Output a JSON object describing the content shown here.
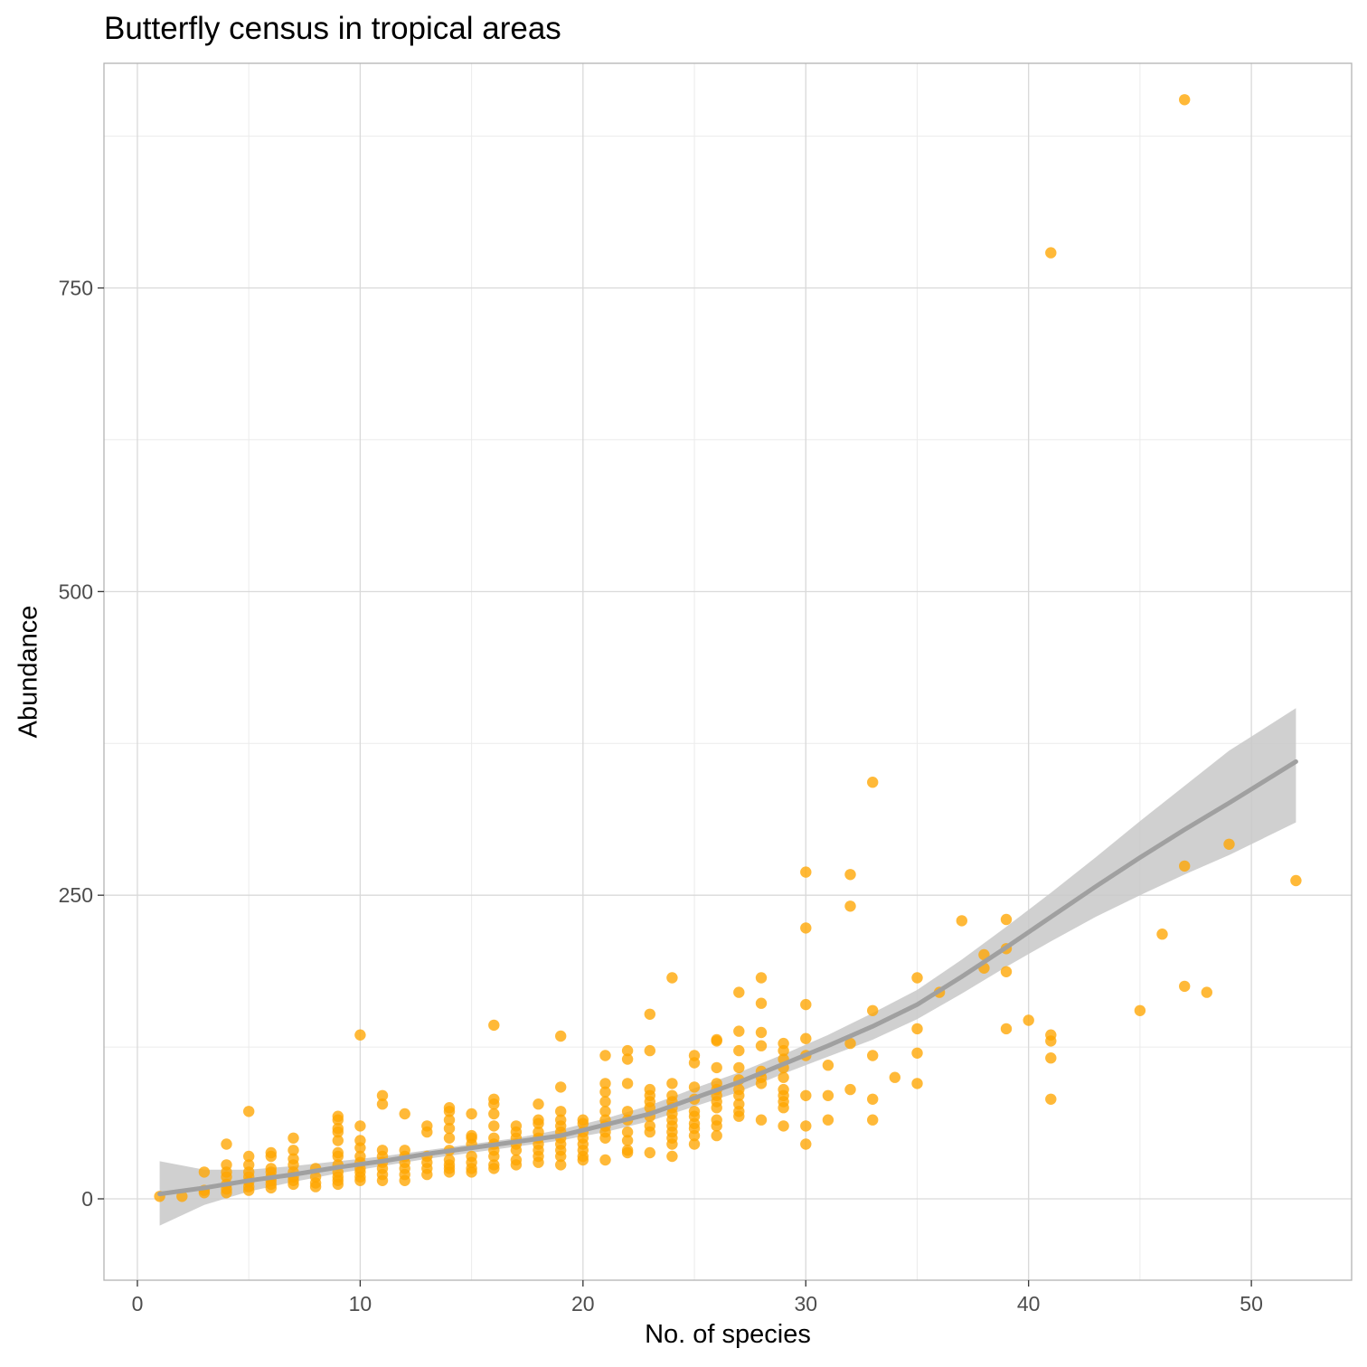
{
  "chart_data": {
    "type": "scatter",
    "title": "Butterfly census in tropical areas",
    "xlabel": "No. of species",
    "ylabel": "Abundance",
    "xlim": [
      -1.5,
      54.5
    ],
    "ylim": [
      -67,
      935
    ],
    "x_ticks": [
      0,
      10,
      20,
      30,
      40,
      50
    ],
    "y_ticks": [
      0,
      250,
      500,
      750
    ],
    "x_tick_labels": [
      "0",
      "10",
      "20",
      "30",
      "40",
      "50"
    ],
    "y_tick_labels": [
      "0",
      "250",
      "500",
      "750"
    ],
    "grid": true,
    "point_color": "#FFA500",
    "trend_color": "#A0A0A0",
    "band_color": "#C8C8C8",
    "points": [
      [
        1,
        2
      ],
      [
        2,
        2
      ],
      [
        3,
        5
      ],
      [
        3,
        7
      ],
      [
        3,
        22
      ],
      [
        4,
        5
      ],
      [
        4,
        8
      ],
      [
        4,
        12
      ],
      [
        4,
        18
      ],
      [
        4,
        22
      ],
      [
        4,
        28
      ],
      [
        4,
        45
      ],
      [
        5,
        7
      ],
      [
        5,
        10
      ],
      [
        5,
        14
      ],
      [
        5,
        18
      ],
      [
        5,
        22
      ],
      [
        5,
        28
      ],
      [
        5,
        35
      ],
      [
        5,
        72
      ],
      [
        6,
        9
      ],
      [
        6,
        12
      ],
      [
        6,
        15
      ],
      [
        6,
        18
      ],
      [
        6,
        22
      ],
      [
        6,
        25
      ],
      [
        6,
        35
      ],
      [
        6,
        38
      ],
      [
        7,
        12
      ],
      [
        7,
        15
      ],
      [
        7,
        18
      ],
      [
        7,
        22
      ],
      [
        7,
        28
      ],
      [
        7,
        33
      ],
      [
        7,
        40
      ],
      [
        7,
        50
      ],
      [
        8,
        10
      ],
      [
        8,
        13
      ],
      [
        8,
        18
      ],
      [
        8,
        25
      ],
      [
        9,
        12
      ],
      [
        9,
        15
      ],
      [
        9,
        18
      ],
      [
        9,
        22
      ],
      [
        9,
        28
      ],
      [
        9,
        35
      ],
      [
        9,
        38
      ],
      [
        9,
        48
      ],
      [
        9,
        55
      ],
      [
        9,
        58
      ],
      [
        9,
        65
      ],
      [
        9,
        68
      ],
      [
        10,
        15
      ],
      [
        10,
        18
      ],
      [
        10,
        22
      ],
      [
        10,
        25
      ],
      [
        10,
        30
      ],
      [
        10,
        35
      ],
      [
        10,
        42
      ],
      [
        10,
        48
      ],
      [
        10,
        60
      ],
      [
        10,
        135
      ],
      [
        11,
        15
      ],
      [
        11,
        20
      ],
      [
        11,
        25
      ],
      [
        11,
        30
      ],
      [
        11,
        35
      ],
      [
        11,
        40
      ],
      [
        11,
        78
      ],
      [
        11,
        85
      ],
      [
        12,
        15
      ],
      [
        12,
        20
      ],
      [
        12,
        25
      ],
      [
        12,
        30
      ],
      [
        12,
        35
      ],
      [
        12,
        40
      ],
      [
        12,
        70
      ],
      [
        13,
        20
      ],
      [
        13,
        25
      ],
      [
        13,
        30
      ],
      [
        13,
        35
      ],
      [
        13,
        55
      ],
      [
        13,
        60
      ],
      [
        14,
        22
      ],
      [
        14,
        25
      ],
      [
        14,
        28
      ],
      [
        14,
        32
      ],
      [
        14,
        40
      ],
      [
        14,
        50
      ],
      [
        14,
        58
      ],
      [
        14,
        65
      ],
      [
        14,
        72
      ],
      [
        14,
        75
      ],
      [
        15,
        22
      ],
      [
        15,
        25
      ],
      [
        15,
        30
      ],
      [
        15,
        35
      ],
      [
        15,
        45
      ],
      [
        15,
        50
      ],
      [
        15,
        52
      ],
      [
        15,
        70
      ],
      [
        16,
        25
      ],
      [
        16,
        28
      ],
      [
        16,
        35
      ],
      [
        16,
        40
      ],
      [
        16,
        45
      ],
      [
        16,
        50
      ],
      [
        16,
        60
      ],
      [
        16,
        70
      ],
      [
        16,
        78
      ],
      [
        16,
        82
      ],
      [
        16,
        143
      ],
      [
        17,
        28
      ],
      [
        17,
        32
      ],
      [
        17,
        40
      ],
      [
        17,
        45
      ],
      [
        17,
        50
      ],
      [
        17,
        55
      ],
      [
        17,
        60
      ],
      [
        18,
        30
      ],
      [
        18,
        35
      ],
      [
        18,
        40
      ],
      [
        18,
        45
      ],
      [
        18,
        50
      ],
      [
        18,
        55
      ],
      [
        18,
        62
      ],
      [
        18,
        65
      ],
      [
        18,
        78
      ],
      [
        19,
        28
      ],
      [
        19,
        35
      ],
      [
        19,
        40
      ],
      [
        19,
        45
      ],
      [
        19,
        50
      ],
      [
        19,
        55
      ],
      [
        19,
        60
      ],
      [
        19,
        65
      ],
      [
        19,
        72
      ],
      [
        19,
        92
      ],
      [
        19,
        134
      ],
      [
        20,
        32
      ],
      [
        20,
        35
      ],
      [
        20,
        40
      ],
      [
        20,
        45
      ],
      [
        20,
        50
      ],
      [
        20,
        55
      ],
      [
        20,
        62
      ],
      [
        20,
        65
      ],
      [
        21,
        32
      ],
      [
        21,
        50
      ],
      [
        21,
        55
      ],
      [
        21,
        60
      ],
      [
        21,
        65
      ],
      [
        21,
        72
      ],
      [
        21,
        80
      ],
      [
        21,
        88
      ],
      [
        21,
        95
      ],
      [
        21,
        118
      ],
      [
        22,
        38
      ],
      [
        22,
        40
      ],
      [
        22,
        48
      ],
      [
        22,
        55
      ],
      [
        22,
        65
      ],
      [
        22,
        72
      ],
      [
        22,
        95
      ],
      [
        22,
        115
      ],
      [
        22,
        122
      ],
      [
        23,
        38
      ],
      [
        23,
        55
      ],
      [
        23,
        60
      ],
      [
        23,
        68
      ],
      [
        23,
        75
      ],
      [
        23,
        80
      ],
      [
        23,
        85
      ],
      [
        23,
        90
      ],
      [
        23,
        122
      ],
      [
        23,
        152
      ],
      [
        24,
        35
      ],
      [
        24,
        45
      ],
      [
        24,
        50
      ],
      [
        24,
        55
      ],
      [
        24,
        60
      ],
      [
        24,
        65
      ],
      [
        24,
        70
      ],
      [
        24,
        75
      ],
      [
        24,
        80
      ],
      [
        24,
        85
      ],
      [
        24,
        95
      ],
      [
        24,
        182
      ],
      [
        25,
        45
      ],
      [
        25,
        52
      ],
      [
        25,
        58
      ],
      [
        25,
        62
      ],
      [
        25,
        68
      ],
      [
        25,
        72
      ],
      [
        25,
        82
      ],
      [
        25,
        92
      ],
      [
        25,
        112
      ],
      [
        25,
        118
      ],
      [
        26,
        52
      ],
      [
        26,
        60
      ],
      [
        26,
        65
      ],
      [
        26,
        75
      ],
      [
        26,
        80
      ],
      [
        26,
        85
      ],
      [
        26,
        90
      ],
      [
        26,
        95
      ],
      [
        26,
        108
      ],
      [
        26,
        130
      ],
      [
        26,
        131
      ],
      [
        27,
        68
      ],
      [
        27,
        72
      ],
      [
        27,
        78
      ],
      [
        27,
        85
      ],
      [
        27,
        90
      ],
      [
        27,
        98
      ],
      [
        27,
        108
      ],
      [
        27,
        122
      ],
      [
        27,
        138
      ],
      [
        27,
        170
      ],
      [
        28,
        65
      ],
      [
        28,
        95
      ],
      [
        28,
        100
      ],
      [
        28,
        105
      ],
      [
        28,
        126
      ],
      [
        28,
        137
      ],
      [
        28,
        161
      ],
      [
        28,
        182
      ],
      [
        29,
        60
      ],
      [
        29,
        75
      ],
      [
        29,
        80
      ],
      [
        29,
        85
      ],
      [
        29,
        90
      ],
      [
        29,
        100
      ],
      [
        29,
        108
      ],
      [
        29,
        115
      ],
      [
        29,
        122
      ],
      [
        29,
        128
      ],
      [
        30,
        45
      ],
      [
        30,
        60
      ],
      [
        30,
        85
      ],
      [
        30,
        118
      ],
      [
        30,
        132
      ],
      [
        30,
        160
      ],
      [
        30,
        223
      ],
      [
        30,
        269
      ],
      [
        31,
        65
      ],
      [
        31,
        85
      ],
      [
        31,
        110
      ],
      [
        32,
        90
      ],
      [
        32,
        128
      ],
      [
        32,
        241
      ],
      [
        32,
        267
      ],
      [
        33,
        65
      ],
      [
        33,
        82
      ],
      [
        33,
        118
      ],
      [
        33,
        155
      ],
      [
        33,
        343
      ],
      [
        34,
        100
      ],
      [
        35,
        95
      ],
      [
        35,
        120
      ],
      [
        35,
        140
      ],
      [
        35,
        182
      ],
      [
        36,
        170
      ],
      [
        37,
        229
      ],
      [
        38,
        190
      ],
      [
        38,
        201
      ],
      [
        39,
        140
      ],
      [
        39,
        187
      ],
      [
        39,
        206
      ],
      [
        39,
        230
      ],
      [
        40,
        147
      ],
      [
        41,
        82
      ],
      [
        41,
        116
      ],
      [
        41,
        130
      ],
      [
        41,
        135
      ],
      [
        41,
        779
      ],
      [
        45,
        155
      ],
      [
        46,
        218
      ],
      [
        47,
        175
      ],
      [
        47,
        274
      ],
      [
        47,
        905
      ],
      [
        48,
        170
      ],
      [
        49,
        292
      ],
      [
        52,
        262
      ]
    ],
    "trend": {
      "x": [
        1,
        3,
        5,
        7,
        9,
        11,
        13,
        15,
        17,
        19,
        21,
        23,
        25,
        27,
        29,
        31,
        33,
        35,
        37,
        39,
        41,
        43,
        45,
        47,
        49,
        52
      ],
      "y": [
        4,
        9,
        15,
        20,
        26,
        31,
        37,
        42,
        47,
        52,
        61,
        70,
        83,
        96,
        111,
        126,
        142,
        160,
        183,
        207,
        232,
        257,
        281,
        304,
        326,
        360
      ],
      "lower": [
        -22,
        -5,
        6,
        14,
        21,
        27,
        33,
        38,
        43,
        48,
        55,
        64,
        76,
        88,
        103,
        117,
        131,
        148,
        169,
        191,
        212,
        232,
        250,
        267,
        283,
        310
      ],
      "upper": [
        31,
        24,
        24,
        27,
        31,
        35,
        40,
        45,
        50,
        57,
        66,
        77,
        91,
        104,
        119,
        135,
        153,
        172,
        197,
        224,
        252,
        281,
        311,
        340,
        369,
        404
      ]
    }
  }
}
